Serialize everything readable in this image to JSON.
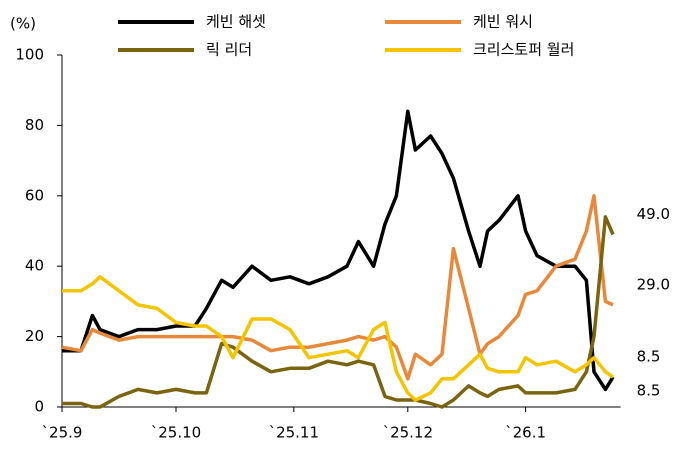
{
  "chart_data": {
    "type": "line",
    "y_unit": "(%)",
    "x": [
      0,
      5,
      8,
      10,
      15,
      20,
      25,
      30,
      35,
      38,
      42,
      45,
      50,
      55,
      60,
      65,
      70,
      75,
      78,
      82,
      85,
      88,
      91,
      93,
      97,
      100,
      103,
      107,
      110,
      112,
      115,
      120,
      122,
      125,
      130,
      135,
      138,
      140,
      143,
      145
    ],
    "xlim": [
      0,
      147
    ],
    "xticks": [
      {
        "value": 0,
        "label": "`25.9"
      },
      {
        "value": 30,
        "label": "`25.10"
      },
      {
        "value": 61,
        "label": "`25.11"
      },
      {
        "value": 91,
        "label": "`25.12"
      },
      {
        "value": 122,
        "label": "`26.1"
      }
    ],
    "ylim": [
      0,
      100
    ],
    "yticks": [
      0,
      20,
      40,
      60,
      80,
      100
    ],
    "grid": false,
    "series": [
      {
        "name": "케빈 해셋",
        "color": "#000000",
        "values": [
          16,
          16,
          26,
          22,
          20,
          22,
          22,
          23,
          23,
          28,
          36,
          34,
          40,
          36,
          37,
          35,
          37,
          40,
          47,
          40,
          52,
          60,
          84,
          73,
          77,
          72,
          65,
          50,
          40,
          50,
          53,
          60,
          50,
          43,
          40,
          40,
          36,
          10,
          5,
          8.5
        ],
        "value_labels": [
          null,
          null,
          null,
          null,
          null,
          null,
          null,
          null,
          null,
          null,
          null,
          null,
          null,
          null,
          null,
          null,
          null,
          null,
          null,
          null,
          null,
          null,
          null,
          null,
          null,
          null,
          null,
          null,
          null,
          null,
          null,
          null,
          null,
          null,
          null,
          null,
          null,
          null,
          null,
          "8.5"
        ]
      },
      {
        "name": "케빈 워시",
        "color": "#e8883a",
        "values": [
          17,
          16,
          22,
          21,
          19,
          20,
          20,
          20,
          20,
          20,
          20,
          20,
          19,
          16,
          17,
          17,
          18,
          19,
          20,
          19,
          20,
          17,
          8,
          15,
          12,
          15,
          45,
          28,
          15,
          18,
          20,
          26,
          32,
          33,
          40,
          42,
          50,
          60,
          30,
          29
        ],
        "value_labels": [
          null,
          null,
          null,
          null,
          null,
          null,
          null,
          null,
          null,
          null,
          null,
          null,
          null,
          null,
          null,
          null,
          null,
          null,
          null,
          null,
          null,
          null,
          null,
          null,
          null,
          null,
          null,
          null,
          null,
          null,
          null,
          null,
          null,
          null,
          null,
          null,
          null,
          null,
          null,
          "29.0"
        ]
      },
      {
        "name": "릭 리더",
        "color": "#7a6410",
        "values": [
          1,
          1,
          0,
          0,
          3,
          5,
          4,
          5,
          4,
          4,
          18,
          17,
          13,
          10,
          11,
          11,
          13,
          12,
          13,
          12,
          3,
          2,
          2,
          2,
          1,
          0,
          2,
          6,
          4,
          3,
          5,
          6,
          4,
          4,
          4,
          5,
          10,
          20,
          54,
          49
        ],
        "value_labels": [
          null,
          null,
          null,
          null,
          null,
          null,
          null,
          null,
          null,
          null,
          null,
          null,
          null,
          null,
          null,
          null,
          null,
          null,
          null,
          null,
          null,
          null,
          null,
          null,
          null,
          null,
          null,
          null,
          null,
          null,
          null,
          null,
          null,
          null,
          null,
          null,
          null,
          null,
          null,
          "49.0"
        ]
      },
      {
        "name": "크리스토퍼 월러",
        "color": "#f5c400",
        "values": [
          33,
          33,
          35,
          37,
          33,
          29,
          28,
          24,
          23,
          23,
          20,
          14,
          25,
          25,
          22,
          14,
          15,
          16,
          14,
          22,
          24,
          10,
          4,
          2,
          4,
          8,
          8,
          12,
          15,
          11,
          10,
          10,
          14,
          12,
          13,
          10,
          12,
          14,
          10,
          8.5
        ],
        "value_labels": [
          null,
          null,
          null,
          null,
          null,
          null,
          null,
          null,
          null,
          null,
          null,
          null,
          null,
          null,
          null,
          null,
          null,
          null,
          null,
          null,
          null,
          null,
          null,
          null,
          null,
          null,
          null,
          null,
          null,
          null,
          null,
          null,
          null,
          null,
          null,
          null,
          null,
          null,
          null,
          "8.5"
        ]
      }
    ]
  }
}
